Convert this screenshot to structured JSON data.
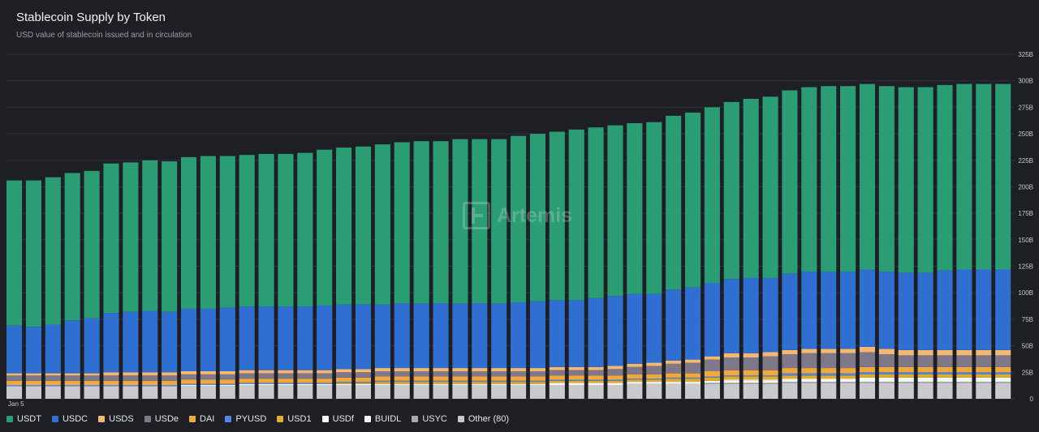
{
  "title": "Stablecoin Supply by Token",
  "subtitle": "USD value of stablecoin issued and in circulation",
  "watermark": "Artemis",
  "chart_data": {
    "type": "bar",
    "stacked": true,
    "ylim": [
      0,
      325
    ],
    "yticks": [
      "0",
      "25B",
      "50B",
      "75B",
      "100B",
      "125B",
      "150B",
      "175B",
      "200B",
      "225B",
      "250B",
      "275B",
      "300B",
      "325B"
    ],
    "x_tick_label": "Jan 5",
    "grid": true,
    "legend_position": "bottom",
    "series": [
      {
        "name": "Other (80)",
        "color": "#c9cacc",
        "values": [
          12,
          12,
          12,
          12,
          12,
          12,
          12,
          12,
          12,
          12,
          12,
          12,
          13,
          13,
          13,
          13,
          13,
          13,
          13,
          13,
          13,
          13,
          13,
          13,
          13,
          13,
          13,
          13,
          13,
          13,
          13,
          13,
          14,
          14,
          14,
          14,
          14,
          14,
          14,
          14,
          15,
          15,
          15,
          15,
          15,
          15,
          15,
          15,
          15,
          15,
          15,
          15
        ]
      },
      {
        "name": "USYC",
        "color": "#a5a8ae",
        "values": [
          0,
          0,
          0,
          0,
          0,
          0,
          0,
          0,
          0,
          0,
          0,
          0,
          0,
          0,
          0,
          0,
          0,
          0,
          0,
          0,
          0,
          0,
          0,
          0,
          0,
          0,
          0,
          0,
          0,
          0,
          0,
          0,
          0,
          0,
          0,
          0,
          1,
          1,
          1,
          1,
          1,
          1,
          1,
          1,
          1,
          1,
          1,
          1,
          1,
          1,
          1,
          1
        ]
      },
      {
        "name": "BUIDL",
        "color": "#f5f5f5",
        "values": [
          0,
          0,
          0,
          0,
          0,
          0,
          0,
          0,
          0,
          1,
          1,
          1,
          1,
          1,
          1,
          1,
          1,
          1,
          1,
          1,
          1,
          1,
          1,
          1,
          1,
          1,
          1,
          1,
          2,
          2,
          2,
          2,
          2,
          2,
          2,
          2,
          2,
          2,
          2,
          2,
          2,
          2,
          2,
          2,
          2,
          2,
          2,
          2,
          2,
          2,
          2,
          2
        ]
      },
      {
        "name": "USDf",
        "color": "#ffffff",
        "values": [
          0,
          0,
          0,
          0,
          0,
          0,
          0,
          0,
          0,
          0,
          0,
          0,
          0,
          0,
          0,
          0,
          0,
          0,
          0,
          0,
          0,
          0,
          0,
          0,
          0,
          0,
          0,
          0,
          0,
          0,
          0,
          0,
          0,
          0,
          0,
          0,
          0,
          1,
          1,
          1,
          1,
          1,
          1,
          1,
          2,
          2,
          2,
          2,
          2,
          2,
          2,
          2
        ]
      },
      {
        "name": "USD1",
        "color": "#e0ad25",
        "values": [
          0,
          0,
          0,
          0,
          0,
          0,
          0,
          0,
          0,
          0,
          0,
          0,
          0,
          0,
          0,
          0,
          0,
          1,
          1,
          2,
          2,
          2,
          2,
          2,
          2,
          2,
          2,
          2,
          2,
          2,
          2,
          2,
          2,
          2,
          3,
          3,
          3,
          3,
          3,
          3,
          3,
          3,
          3,
          3,
          3,
          3,
          3,
          3,
          3,
          3,
          3,
          3
        ]
      },
      {
        "name": "PYUSD",
        "color": "#4f86e8",
        "values": [
          1,
          1,
          1,
          1,
          1,
          1,
          1,
          1,
          1,
          1,
          1,
          1,
          1,
          1,
          1,
          1,
          1,
          1,
          1,
          1,
          1,
          1,
          1,
          1,
          1,
          1,
          1,
          1,
          1,
          1,
          1,
          1,
          1,
          1,
          1,
          1,
          1,
          1,
          1,
          1,
          2,
          2,
          2,
          2,
          2,
          2,
          2,
          2,
          2,
          2,
          2,
          2
        ]
      },
      {
        "name": "DAI",
        "color": "#f2a93b",
        "values": [
          4,
          4,
          4,
          4,
          4,
          4,
          4,
          4,
          4,
          4,
          4,
          4,
          4,
          4,
          4,
          4,
          4,
          4,
          4,
          4,
          4,
          4,
          4,
          4,
          4,
          4,
          4,
          4,
          4,
          4,
          4,
          4,
          4,
          4,
          4,
          4,
          5,
          5,
          5,
          5,
          5,
          5,
          5,
          5,
          5,
          5,
          5,
          5,
          5,
          5,
          5,
          5
        ]
      },
      {
        "name": "USDe",
        "color": "#7f7888",
        "values": [
          5,
          5,
          5,
          5,
          5,
          5,
          5,
          5,
          5,
          5,
          5,
          5,
          5,
          5,
          5,
          5,
          5,
          5,
          5,
          5,
          5,
          5,
          5,
          5,
          5,
          5,
          5,
          5,
          5,
          5,
          5,
          6,
          7,
          8,
          9,
          10,
          11,
          12,
          12,
          13,
          13,
          14,
          14,
          14,
          14,
          12,
          11,
          11,
          11,
          11,
          11,
          11
        ]
      },
      {
        "name": "USDS",
        "color": "#f5b872",
        "values": [
          2,
          2,
          2,
          2,
          2,
          3,
          3,
          3,
          3,
          3,
          3,
          3,
          3,
          3,
          3,
          3,
          3,
          3,
          3,
          3,
          3,
          3,
          3,
          3,
          3,
          3,
          3,
          3,
          3,
          3,
          3,
          3,
          3,
          3,
          3,
          3,
          3,
          4,
          4,
          4,
          4,
          4,
          4,
          4,
          5,
          5,
          5,
          5,
          5,
          5,
          5,
          5
        ]
      },
      {
        "name": "USDC",
        "color": "#2f6fd1",
        "values": [
          45,
          44,
          46,
          50,
          52,
          56,
          57,
          58,
          57,
          59,
          59,
          60,
          60,
          60,
          60,
          60,
          61,
          61,
          61,
          60,
          61,
          61,
          61,
          61,
          61,
          61,
          62,
          63,
          63,
          63,
          65,
          66,
          66,
          65,
          67,
          68,
          69,
          70,
          71,
          70,
          72,
          73,
          73,
          73,
          73,
          73,
          73,
          73,
          75,
          76,
          76,
          76
        ]
      },
      {
        "name": "USDT",
        "color": "#2a9d75",
        "values": [
          137,
          138,
          139,
          139,
          139,
          141,
          141,
          142,
          142,
          143,
          144,
          143,
          143,
          144,
          144,
          145,
          147,
          148,
          149,
          151,
          152,
          153,
          153,
          155,
          155,
          155,
          157,
          158,
          159,
          161,
          161,
          161,
          161,
          162,
          164,
          165,
          166,
          167,
          169,
          171,
          173,
          174,
          175,
          175,
          175,
          175,
          175,
          175,
          175,
          175,
          175,
          175
        ]
      }
    ]
  },
  "legend": [
    {
      "label": "USDT",
      "color": "#2a9d75"
    },
    {
      "label": "USDC",
      "color": "#2f6fd1"
    },
    {
      "label": "USDS",
      "color": "#f5b872"
    },
    {
      "label": "USDe",
      "color": "#7f7888"
    },
    {
      "label": "DAI",
      "color": "#f2a93b"
    },
    {
      "label": "PYUSD",
      "color": "#4f86e8"
    },
    {
      "label": "USD1",
      "color": "#e0ad25"
    },
    {
      "label": "USDf",
      "color": "#ffffff"
    },
    {
      "label": "BUIDL",
      "color": "#f5f5f5"
    },
    {
      "label": "USYC",
      "color": "#a5a8ae"
    },
    {
      "label": "Other (80)",
      "color": "#c9cacc"
    }
  ]
}
